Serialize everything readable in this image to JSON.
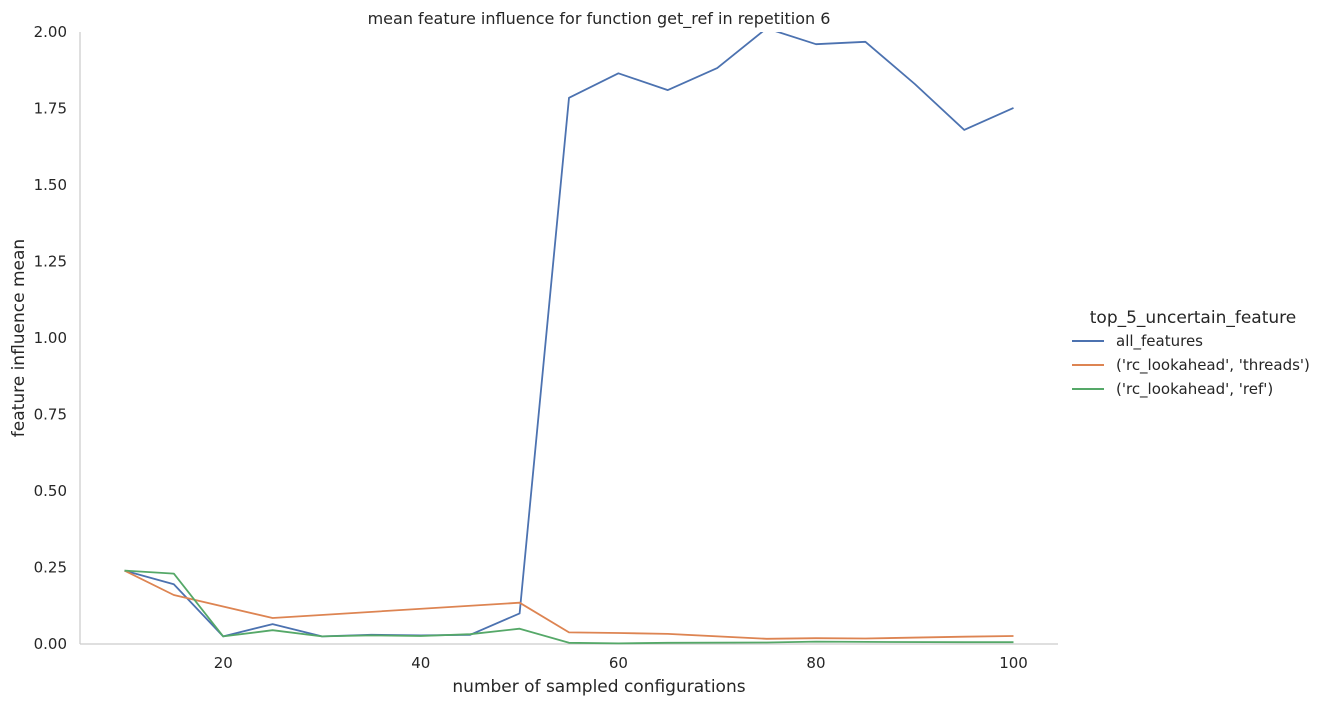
{
  "chart_data": {
    "type": "line",
    "title": "mean feature influence for function get_ref in repetition 6",
    "xlabel": "number of sampled configurations",
    "ylabel": "feature influence mean",
    "xlim": [
      5.5,
      104.5
    ],
    "ylim": [
      0,
      2.0
    ],
    "xticks": [
      20,
      40,
      60,
      80,
      100
    ],
    "yticks": [
      0.0,
      0.25,
      0.5,
      0.75,
      1.0,
      1.25,
      1.5,
      1.75,
      2.0
    ],
    "ytick_labels": [
      "0.00",
      "0.25",
      "0.50",
      "0.75",
      "1.00",
      "1.25",
      "1.50",
      "1.75",
      "2.00"
    ],
    "grid": false,
    "legend_title": "top_5_uncertain_feature",
    "legend_position": "right",
    "x": [
      10,
      15,
      20,
      25,
      30,
      35,
      40,
      45,
      50,
      55,
      60,
      65,
      70,
      75,
      80,
      85,
      90,
      95,
      100
    ],
    "series": [
      {
        "name": "all_features",
        "color": "#4c72b0",
        "values": [
          0.24,
          0.195,
          0.025,
          0.065,
          0.025,
          0.03,
          0.028,
          0.03,
          0.1,
          1.785,
          1.865,
          1.81,
          1.882,
          2.012,
          1.96,
          1.968,
          1.83,
          1.68,
          1.752
        ]
      },
      {
        "name": "('rc_lookahead', 'threads')",
        "color": "#dd8452",
        "values": [
          0.24,
          0.16,
          null,
          0.085,
          null,
          null,
          null,
          null,
          0.135,
          0.038,
          0.036,
          0.033,
          null,
          0.017,
          0.019,
          0.018,
          null,
          0.024,
          0.026
        ]
      },
      {
        "name": "('rc_lookahead', 'ref')",
        "color": "#55a868",
        "values": [
          0.24,
          0.23,
          0.025,
          0.045,
          0.025,
          0.028,
          0.026,
          0.032,
          0.05,
          0.004,
          0.002,
          0.004,
          null,
          0.005,
          0.008,
          0.007,
          null,
          0.006,
          0.006
        ]
      }
    ]
  }
}
